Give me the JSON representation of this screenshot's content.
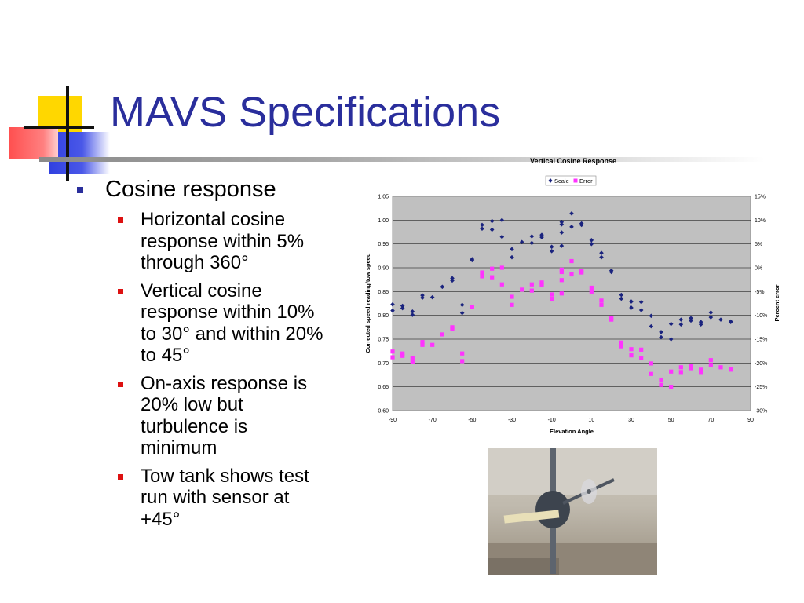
{
  "slide": {
    "title": "MAVS Specifications",
    "bullets": [
      {
        "text": "Cosine response",
        "sub": [
          "Horizontal cosine response within 5% through 360°",
          "Vertical cosine response within 10% to 30° and within 20% to 45°",
          "On-axis response is 20% low but turbulence is minimum",
          "Tow tank shows test run with sensor at +45°"
        ]
      }
    ]
  },
  "colors": {
    "title": "#2a2e9c",
    "bullet_l1": "#2a2e9c",
    "bullet_l2": "#dd1111",
    "scale": "#1a237e",
    "error": "#ff33ff",
    "plot_bg": "#c0c0c0"
  },
  "chart_data": {
    "type": "scatter",
    "title": "Vertical Cosine Response",
    "xlabel": "Elevation Angle",
    "ylabel": "Corrected speed reading/tow speed",
    "y2label": "Percent error",
    "xlim": [
      -90,
      90
    ],
    "ylim": [
      0.6,
      1.05
    ],
    "y2lim": [
      -30,
      15
    ],
    "x_ticks": [
      "-90",
      "-70",
      "-50",
      "-30",
      "-10",
      "10",
      "30",
      "50",
      "70",
      "90"
    ],
    "y_ticks": [
      "0.60",
      "0.65",
      "0.70",
      "0.75",
      "0.80",
      "0.85",
      "0.90",
      "0.95",
      "1.00",
      "1.05"
    ],
    "y2_ticks": [
      "-30%",
      "-25%",
      "-20%",
      "-15%",
      "-10%",
      "-5%",
      "0%",
      "5%",
      "10%",
      "15%"
    ],
    "grid": true,
    "legend_position": "top",
    "series": [
      {
        "name": "Scale",
        "marker": "diamond",
        "axis": "left",
        "points": [
          [
            -90,
            0.823
          ],
          [
            -90,
            0.81
          ],
          [
            -85,
            0.82
          ],
          [
            -85,
            0.815
          ],
          [
            -80,
            0.808
          ],
          [
            -80,
            0.801
          ],
          [
            -75,
            0.842
          ],
          [
            -75,
            0.837
          ],
          [
            -70,
            0.838
          ],
          [
            -65,
            0.86
          ],
          [
            -60,
            0.878
          ],
          [
            -60,
            0.873
          ],
          [
            -55,
            0.822
          ],
          [
            -55,
            0.805
          ],
          [
            -50,
            0.918
          ],
          [
            -50,
            0.916
          ],
          [
            -45,
            0.99
          ],
          [
            -45,
            0.982
          ],
          [
            -40,
            0.998
          ],
          [
            -40,
            0.98
          ],
          [
            -35,
            1.0
          ],
          [
            -35,
            0.965
          ],
          [
            -30,
            0.939
          ],
          [
            -30,
            0.922
          ],
          [
            -25,
            0.954
          ],
          [
            -20,
            0.966
          ],
          [
            -20,
            0.952
          ],
          [
            -15,
            0.969
          ],
          [
            -15,
            0.964
          ],
          [
            -10,
            0.944
          ],
          [
            -10,
            0.935
          ],
          [
            -5,
            0.996
          ],
          [
            -5,
            0.991
          ],
          [
            -5,
            0.974
          ],
          [
            -5,
            0.946
          ],
          [
            0,
            1.014
          ],
          [
            0,
            0.986
          ],
          [
            5,
            0.993
          ],
          [
            5,
            0.99
          ],
          [
            10,
            0.958
          ],
          [
            10,
            0.95
          ],
          [
            15,
            0.931
          ],
          [
            15,
            0.922
          ],
          [
            20,
            0.894
          ],
          [
            20,
            0.891
          ],
          [
            25,
            0.843
          ],
          [
            25,
            0.835
          ],
          [
            30,
            0.829
          ],
          [
            30,
            0.816
          ],
          [
            35,
            0.828
          ],
          [
            35,
            0.811
          ],
          [
            40,
            0.799
          ],
          [
            40,
            0.777
          ],
          [
            45,
            0.765
          ],
          [
            45,
            0.754
          ],
          [
            50,
            0.782
          ],
          [
            50,
            0.75
          ],
          [
            55,
            0.791
          ],
          [
            55,
            0.781
          ],
          [
            60,
            0.794
          ],
          [
            60,
            0.789
          ],
          [
            65,
            0.786
          ],
          [
            65,
            0.781
          ],
          [
            70,
            0.806
          ],
          [
            70,
            0.796
          ],
          [
            75,
            0.791
          ],
          [
            80,
            0.787
          ],
          [
            80,
            0.786
          ]
        ]
      },
      {
        "name": "Error",
        "marker": "square",
        "axis": "right",
        "points": [
          [
            -90,
            -17.6
          ],
          [
            -90,
            -18.8
          ],
          [
            -85,
            -18.0
          ],
          [
            -85,
            -18.5
          ],
          [
            -80,
            -19.0
          ],
          [
            -80,
            -19.8
          ],
          [
            -75,
            -15.6
          ],
          [
            -75,
            -16.2
          ],
          [
            -70,
            -16.2
          ],
          [
            -65,
            -14.0
          ],
          [
            -60,
            -12.5
          ],
          [
            -60,
            -12.9
          ],
          [
            -55,
            -18.0
          ],
          [
            -55,
            -19.6
          ],
          [
            -50,
            -8.3
          ],
          [
            -45,
            -1.0
          ],
          [
            -45,
            -1.8
          ],
          [
            -40,
            -0.2
          ],
          [
            -40,
            -2.0
          ],
          [
            -35,
            0.0
          ],
          [
            -35,
            -3.5
          ],
          [
            -30,
            -6.1
          ],
          [
            -30,
            -7.8
          ],
          [
            -25,
            -4.6
          ],
          [
            -20,
            -3.5
          ],
          [
            -20,
            -4.8
          ],
          [
            -15,
            -3.1
          ],
          [
            -15,
            -3.6
          ],
          [
            -10,
            -5.6
          ],
          [
            -10,
            -6.5
          ],
          [
            -5,
            -0.4
          ],
          [
            -5,
            -0.9
          ],
          [
            -5,
            -2.6
          ],
          [
            -5,
            -5.4
          ],
          [
            0,
            1.4
          ],
          [
            0,
            -1.4
          ],
          [
            5,
            -0.7
          ],
          [
            5,
            -1.0
          ],
          [
            10,
            -4.2
          ],
          [
            10,
            -5.0
          ],
          [
            15,
            -6.9
          ],
          [
            15,
            -7.8
          ],
          [
            20,
            -10.6
          ],
          [
            20,
            -10.9
          ],
          [
            25,
            -15.7
          ],
          [
            25,
            -16.5
          ],
          [
            30,
            -17.1
          ],
          [
            30,
            -18.4
          ],
          [
            35,
            -17.2
          ],
          [
            35,
            -18.9
          ],
          [
            40,
            -20.1
          ],
          [
            40,
            -22.3
          ],
          [
            45,
            -23.5
          ],
          [
            45,
            -24.6
          ],
          [
            50,
            -21.8
          ],
          [
            50,
            -25.0
          ],
          [
            55,
            -20.9
          ],
          [
            55,
            -21.9
          ],
          [
            60,
            -20.6
          ],
          [
            60,
            -21.1
          ],
          [
            65,
            -21.4
          ],
          [
            65,
            -21.9
          ],
          [
            70,
            -19.4
          ],
          [
            70,
            -20.4
          ],
          [
            75,
            -20.9
          ],
          [
            80,
            -21.3
          ],
          [
            80,
            -21.4
          ]
        ]
      }
    ]
  }
}
